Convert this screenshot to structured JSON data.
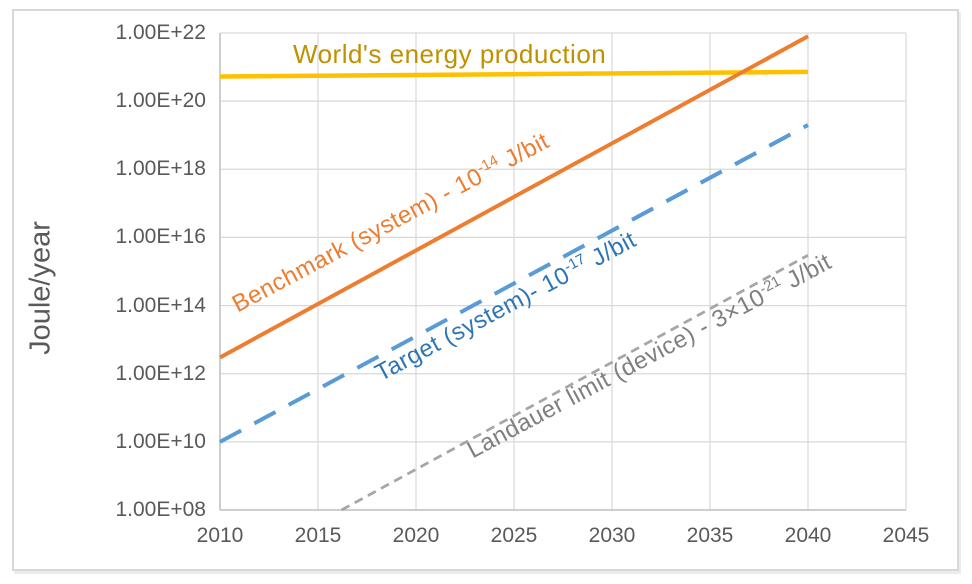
{
  "chart_data": {
    "type": "line",
    "title": "",
    "x_axis": {
      "ticks": [
        "2010",
        "2015",
        "2020",
        "2025",
        "2030",
        "2035",
        "2040",
        "2045"
      ],
      "range": [
        2010,
        2045
      ],
      "gridlines": true
    },
    "y_axis": {
      "title": "Joule/year",
      "scale": "log",
      "ticks": [
        "1.00E+22",
        "1.00E+20",
        "1.00E+18",
        "1.00E+16",
        "1.00E+14",
        "1.00E+12",
        "1.00E+10",
        "1.00E+08"
      ],
      "range_log10": [
        8,
        22
      ],
      "gridlines": true
    },
    "series": [
      {
        "id": "world_energy",
        "label": "World's energy production",
        "color": "#FFC000",
        "line": "solid",
        "width": 4.5,
        "points": [
          [
            2010,
            5.3e+20
          ],
          [
            2040,
            7.2e+20
          ]
        ]
      },
      {
        "id": "benchmark",
        "label": "Benchmark (system) - 10^-14 J/bit",
        "color": "#ED7D31",
        "line": "solid",
        "width": 4,
        "points": [
          [
            2010,
            3000000000000.0
          ],
          [
            2040,
            8e+21
          ]
        ]
      },
      {
        "id": "target",
        "label": "Target (system)- 10^-17 J/bit",
        "color": "#5B9BD5",
        "line": "dashed",
        "width": 4,
        "points": [
          [
            2010,
            10000000000.0
          ],
          [
            2040,
            2e+19
          ]
        ]
      },
      {
        "id": "landauer",
        "label": "Landauer limit (device) - 3×10^-21 J/bit",
        "color": "#A6A6A6",
        "line": "dotted",
        "width": 2.75,
        "points": [
          [
            2016.2,
            100000000.0
          ],
          [
            2040,
            3000000000000000.0
          ]
        ]
      }
    ],
    "legend_position": "inline rotated labels along lines",
    "grid_color": "#D9D9D9",
    "axis_color": "#C0C0C0"
  },
  "labels": {
    "world": {
      "text": "World's energy production"
    },
    "benchmark": {
      "prefix": "Benchmark (system) - 10",
      "sup": "-14",
      "suffix": " J/bit"
    },
    "target": {
      "prefix": "Target (system)- 10",
      "sup": "-17",
      "suffix": " J/bit"
    },
    "landauer": {
      "prefix": "Landauer limit (device) - 3×10",
      "sup": "-21",
      "suffix": " J/bit"
    }
  }
}
